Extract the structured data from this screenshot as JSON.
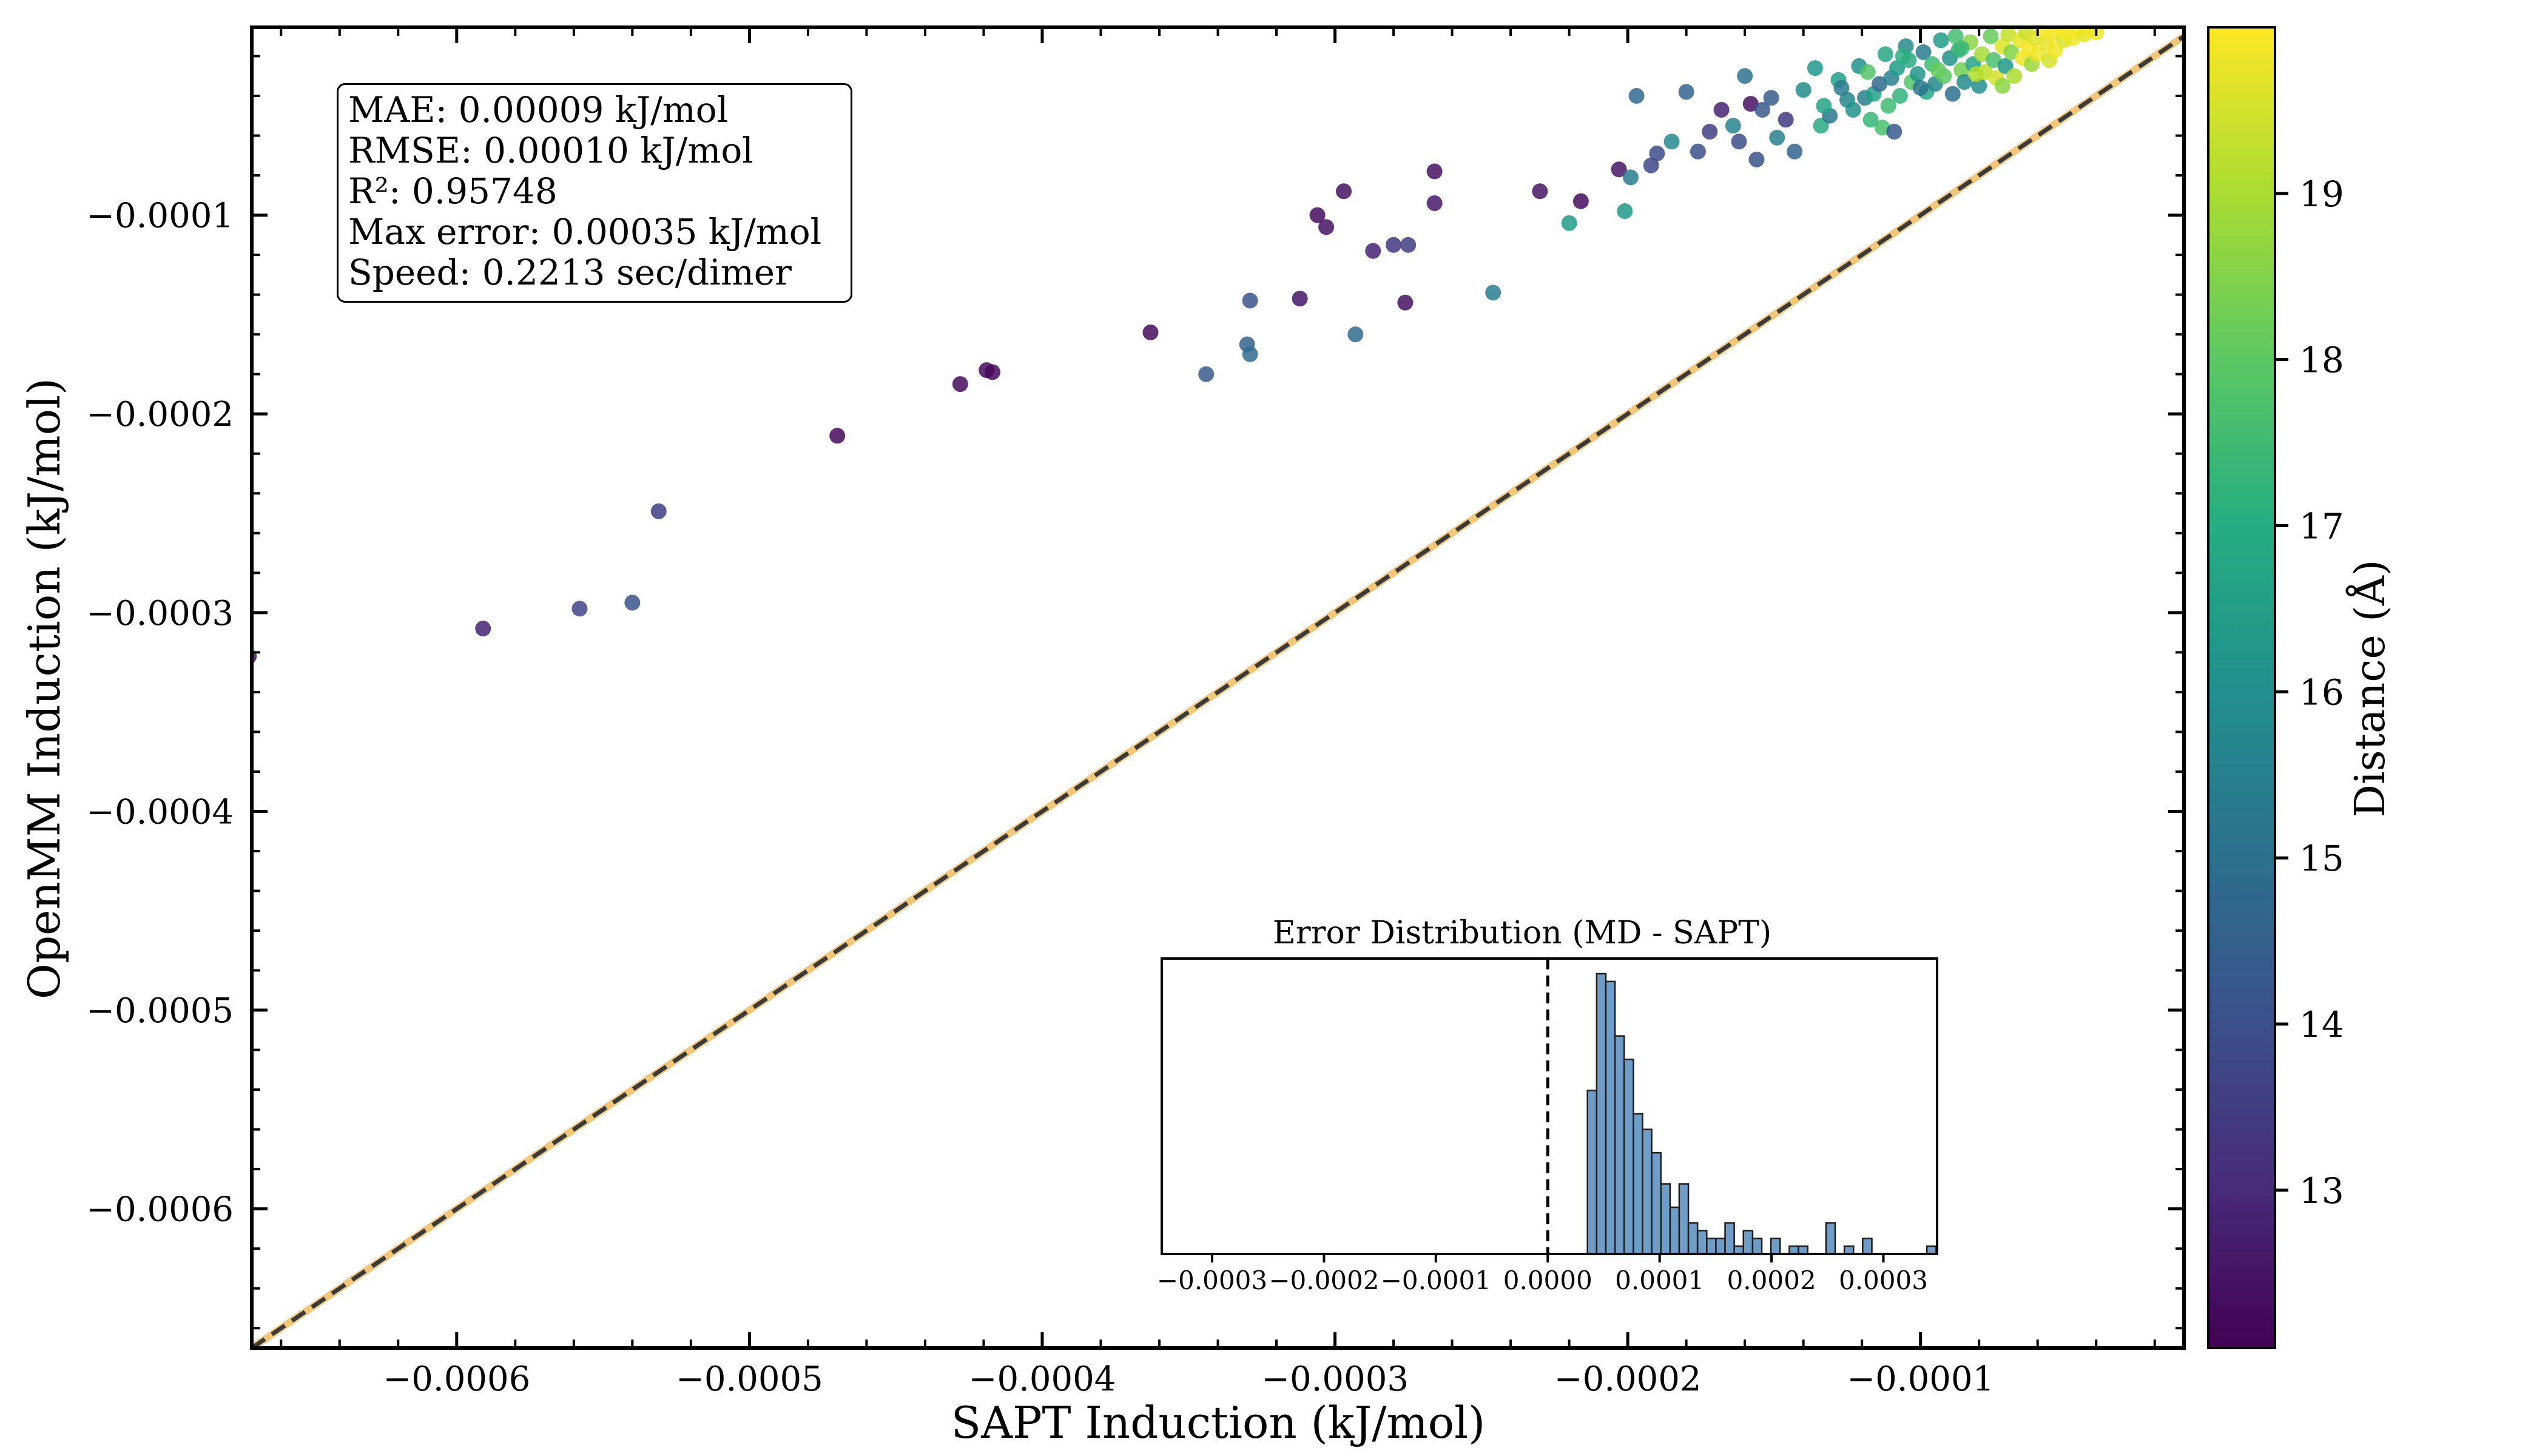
{
  "chart_data": [
    {
      "type": "scatter",
      "xlabel": "SAPT Induction (kJ/mol)",
      "ylabel": "OpenMM Induction (kJ/mol)",
      "xlim": [
        -0.00067,
        -1e-05
      ],
      "ylim": [
        -0.00067,
        -5.5e-06
      ],
      "x_ticks": [
        -0.0006,
        -0.0005,
        -0.0004,
        -0.0003,
        -0.0002,
        -0.0001
      ],
      "x_tick_labels": [
        "−0.0006",
        "−0.0005",
        "−0.0004",
        "−0.0003",
        "−0.0002",
        "−0.0001"
      ],
      "y_ticks": [
        -0.0006,
        -0.0005,
        -0.0004,
        -0.0003,
        -0.0002,
        -0.0001
      ],
      "y_tick_labels": [
        "−0.0006",
        "−0.0005",
        "−0.0004",
        "−0.0003",
        "−0.0002",
        "−0.0001"
      ],
      "reference_line": "y = x (dashed)",
      "colorbar": {
        "label": "Distance (Å)",
        "range": [
          12.05,
          20.0
        ],
        "ticks": [
          13,
          14,
          15,
          16,
          17,
          18,
          19
        ],
        "tick_labels": [
          "13",
          "14",
          "15",
          "16",
          "17",
          "18",
          "19"
        ],
        "colormap": "viridis"
      },
      "points": [
        {
          "x": -0.000671,
          "y": -0.000322,
          "d": 12.5
        },
        {
          "x": -0.000591,
          "y": -0.000308,
          "d": 12.8
        },
        {
          "x": -0.000558,
          "y": -0.000298,
          "d": 13.7
        },
        {
          "x": -0.00054,
          "y": -0.000295,
          "d": 14.1
        },
        {
          "x": -0.000531,
          "y": -0.000249,
          "d": 13.5
        },
        {
          "x": -0.00047,
          "y": -0.000211,
          "d": 12.2
        },
        {
          "x": -0.000428,
          "y": -0.000185,
          "d": 12.3
        },
        {
          "x": -0.000419,
          "y": -0.000178,
          "d": 12.3
        },
        {
          "x": -0.000417,
          "y": -0.000179,
          "d": 12.2
        },
        {
          "x": -0.000363,
          "y": -0.000159,
          "d": 12.3
        },
        {
          "x": -0.000344,
          "y": -0.00018,
          "d": 14.3
        },
        {
          "x": -0.00033,
          "y": -0.000165,
          "d": 14.6
        },
        {
          "x": -0.000329,
          "y": -0.00017,
          "d": 14.8
        },
        {
          "x": -0.000329,
          "y": -0.000143,
          "d": 14.1
        },
        {
          "x": -0.000312,
          "y": -0.000142,
          "d": 12.5
        },
        {
          "x": -0.000306,
          "y": -0.0001,
          "d": 12.3
        },
        {
          "x": -0.000303,
          "y": -0.000106,
          "d": 12.4
        },
        {
          "x": -0.000297,
          "y": -8.8e-05,
          "d": 12.4
        },
        {
          "x": -0.000293,
          "y": -0.00016,
          "d": 14.7
        },
        {
          "x": -0.000287,
          "y": -0.000118,
          "d": 12.8
        },
        {
          "x": -0.00028,
          "y": -0.000115,
          "d": 13.3
        },
        {
          "x": -0.000276,
          "y": -0.000144,
          "d": 12.4
        },
        {
          "x": -0.000275,
          "y": -0.000115,
          "d": 13.5
        },
        {
          "x": -0.000266,
          "y": -9.4e-05,
          "d": 12.6
        },
        {
          "x": -0.000266,
          "y": -7.8e-05,
          "d": 12.4
        },
        {
          "x": -0.000246,
          "y": -0.000139,
          "d": 15.4
        },
        {
          "x": -0.00023,
          "y": -8.8e-05,
          "d": 12.5
        },
        {
          "x": -0.00022,
          "y": -0.000104,
          "d": 16.4
        },
        {
          "x": -0.000216,
          "y": -9.3e-05,
          "d": 12.3
        },
        {
          "x": -0.000203,
          "y": -7.7e-05,
          "d": 12.5
        },
        {
          "x": -0.000201,
          "y": -9.8e-05,
          "d": 16.3
        },
        {
          "x": -0.000199,
          "y": -8.1e-05,
          "d": 15.4
        },
        {
          "x": -0.000197,
          "y": -4e-05,
          "d": 14.7
        },
        {
          "x": -0.000192,
          "y": -7.5e-05,
          "d": 13.8
        },
        {
          "x": -0.00019,
          "y": -6.9e-05,
          "d": 13.9
        },
        {
          "x": -0.000185,
          "y": -6.3e-05,
          "d": 15.8
        },
        {
          "x": -0.00018,
          "y": -3.8e-05,
          "d": 14.5
        },
        {
          "x": -0.000176,
          "y": -6.8e-05,
          "d": 14.0
        },
        {
          "x": -0.000172,
          "y": -5.8e-05,
          "d": 13.5
        },
        {
          "x": -0.000168,
          "y": -4.7e-05,
          "d": 12.8
        },
        {
          "x": -0.000164,
          "y": -5.5e-05,
          "d": 15.6
        },
        {
          "x": -0.000162,
          "y": -6.3e-05,
          "d": 13.9
        },
        {
          "x": -0.00016,
          "y": -3e-05,
          "d": 15.0
        },
        {
          "x": -0.000158,
          "y": -4.4e-05,
          "d": 12.4
        },
        {
          "x": -0.000156,
          "y": -7.2e-05,
          "d": 14.1
        },
        {
          "x": -0.000154,
          "y": -4.7e-05,
          "d": 14.3
        },
        {
          "x": -0.000151,
          "y": -4.1e-05,
          "d": 14.4
        },
        {
          "x": -0.000149,
          "y": -6.1e-05,
          "d": 15.5
        },
        {
          "x": -0.000146,
          "y": -5.2e-05,
          "d": 13.4
        },
        {
          "x": -0.000143,
          "y": -6.8e-05,
          "d": 14.5
        },
        {
          "x": -0.00014,
          "y": -3.7e-05,
          "d": 15.9
        },
        {
          "x": -0.000136,
          "y": -2.6e-05,
          "d": 16.2
        },
        {
          "x": -0.000134,
          "y": -5.5e-05,
          "d": 16.9
        },
        {
          "x": -0.000131,
          "y": -5e-05,
          "d": 15.2
        },
        {
          "x": -0.000128,
          "y": -3.2e-05,
          "d": 16.5
        },
        {
          "x": -0.000125,
          "y": -4.2e-05,
          "d": 15.7
        },
        {
          "x": -0.000123,
          "y": -4.7e-05,
          "d": 16.1
        },
        {
          "x": -0.000121,
          "y": -2.5e-05,
          "d": 16.0
        },
        {
          "x": -0.000119,
          "y": -4.1e-05,
          "d": 15.5
        },
        {
          "x": -0.000117,
          "y": -5.2e-05,
          "d": 17.3
        },
        {
          "x": -0.000116,
          "y": -3.9e-05,
          "d": 16.6
        },
        {
          "x": -0.000114,
          "y": -3.4e-05,
          "d": 14.8
        },
        {
          "x": -0.000113,
          "y": -5.6e-05,
          "d": 17.6
        },
        {
          "x": -0.000112,
          "y": -1.9e-05,
          "d": 16.8
        },
        {
          "x": -0.000111,
          "y": -4.5e-05,
          "d": 17.5
        },
        {
          "x": -0.00011,
          "y": -3.1e-05,
          "d": 15.5
        },
        {
          "x": -0.000109,
          "y": -5.8e-05,
          "d": 14.3
        },
        {
          "x": -0.000108,
          "y": -2.6e-05,
          "d": 16.4
        },
        {
          "x": -0.000107,
          "y": -4e-05,
          "d": 17.2
        },
        {
          "x": -0.000105,
          "y": -1.5e-05,
          "d": 15.8
        },
        {
          "x": -0.000104,
          "y": -2.2e-05,
          "d": 16.9
        },
        {
          "x": -0.000103,
          "y": -3.3e-05,
          "d": 17.8
        },
        {
          "x": -0.000101,
          "y": -2.9e-05,
          "d": 16.2
        },
        {
          "x": -9.9e-05,
          "y": -1.8e-05,
          "d": 15.4
        },
        {
          "x": -9.8e-05,
          "y": -3.8e-05,
          "d": 16.8
        },
        {
          "x": -9.6e-05,
          "y": -2.4e-05,
          "d": 17.5
        },
        {
          "x": -9.5e-05,
          "y": -3.4e-05,
          "d": 15.7
        },
        {
          "x": -9.3e-05,
          "y": -1.2e-05,
          "d": 16.4
        },
        {
          "x": -9.2e-05,
          "y": -3e-05,
          "d": 17.9
        },
        {
          "x": -9e-05,
          "y": -2.1e-05,
          "d": 16.1
        },
        {
          "x": -8.9e-05,
          "y": -3.9e-05,
          "d": 14.9
        },
        {
          "x": -8.7e-05,
          "y": -1.7e-05,
          "d": 17.2
        },
        {
          "x": -8.6e-05,
          "y": -2.7e-05,
          "d": 18.3
        },
        {
          "x": -8.5e-05,
          "y": -3.3e-05,
          "d": 15.9
        },
        {
          "x": -8.3e-05,
          "y": -1.3e-05,
          "d": 18.6
        },
        {
          "x": -8.2e-05,
          "y": -2.4e-05,
          "d": 16.7
        },
        {
          "x": -8e-05,
          "y": -3.5e-05,
          "d": 16.0
        },
        {
          "x": -7.9e-05,
          "y": -1.9e-05,
          "d": 18.9
        },
        {
          "x": -7.8e-05,
          "y": -2.8e-05,
          "d": 19.2
        },
        {
          "x": -7.6e-05,
          "y": -1e-05,
          "d": 18.1
        },
        {
          "x": -7.5e-05,
          "y": -2.2e-05,
          "d": 17.7
        },
        {
          "x": -7.4e-05,
          "y": -3.1e-05,
          "d": 19.5
        },
        {
          "x": -7.2e-05,
          "y": -1.5e-05,
          "d": 19.6
        },
        {
          "x": -7.1e-05,
          "y": -2.5e-05,
          "d": 16.3
        },
        {
          "x": -7e-05,
          "y": -9e-06,
          "d": 19.3
        },
        {
          "x": -6.9e-05,
          "y": -1.8e-05,
          "d": 18.5
        },
        {
          "x": -6.8e-05,
          "y": -3e-05,
          "d": 19.0
        },
        {
          "x": -6.6e-05,
          "y": -1.2e-05,
          "d": 19.7
        },
        {
          "x": -6.5e-05,
          "y": -2.1e-05,
          "d": 19.8
        },
        {
          "x": -6.4e-05,
          "y": -8e-06,
          "d": 19.4
        },
        {
          "x": -6.3e-05,
          "y": -1.6e-05,
          "d": 19.9
        },
        {
          "x": -6.2e-05,
          "y": -2.4e-05,
          "d": 18.8
        },
        {
          "x": -6.1e-05,
          "y": -1.1e-05,
          "d": 19.6
        },
        {
          "x": -6e-05,
          "y": -1.9e-05,
          "d": 19.8
        },
        {
          "x": -5.8e-05,
          "y": -7e-06,
          "d": 19.9
        },
        {
          "x": -5.7e-05,
          "y": -1.4e-05,
          "d": 19.7
        },
        {
          "x": -5.6e-05,
          "y": -2.2e-05,
          "d": 19.5
        },
        {
          "x": -5.5e-05,
          "y": -9e-06,
          "d": 19.9
        },
        {
          "x": -5.4e-05,
          "y": -1.7e-05,
          "d": 19.8
        },
        {
          "x": -5.2e-05,
          "y": -6e-06,
          "d": 19.9
        },
        {
          "x": -5.1e-05,
          "y": -1.2e-05,
          "d": 19.6
        },
        {
          "x": -5e-05,
          "y": -8e-06,
          "d": 19.9
        },
        {
          "x": -4.8e-05,
          "y": -1.1e-05,
          "d": 19.8
        },
        {
          "x": -4.6e-05,
          "y": -7e-06,
          "d": 19.9
        },
        {
          "x": -4.4e-05,
          "y": -9e-06,
          "d": 19.7
        },
        {
          "x": -4.2e-05,
          "y": -6e-06,
          "d": 19.9
        },
        {
          "x": -4e-05,
          "y": -8e-06,
          "d": 19.8
        },
        {
          "x": -8.6e-05,
          "y": -1.6e-05,
          "d": 17.4
        },
        {
          "x": -9.4e-05,
          "y": -2.7e-05,
          "d": 18.1
        },
        {
          "x": -0.0001,
          "y": -3.6e-05,
          "d": 15.1
        },
        {
          "x": -0.000106,
          "y": -2e-05,
          "d": 17.0
        },
        {
          "x": -0.000118,
          "y": -2.8e-05,
          "d": 17.8
        },
        {
          "x": -0.000127,
          "y": -3.6e-05,
          "d": 15.3
        },
        {
          "x": -0.000133,
          "y": -4.5e-05,
          "d": 16.7
        },
        {
          "x": -7.2e-05,
          "y": -3.5e-05,
          "d": 18.6
        },
        {
          "x": -8.1e-05,
          "y": -2.9e-05,
          "d": 19.1
        },
        {
          "x": -8.8e-05,
          "y": -1e-05,
          "d": 17.6
        }
      ],
      "stats_box": [
        "MAE: 0.00009 kJ/mol",
        "RMSE: 0.00010 kJ/mol",
        "R²: 0.95748",
        "Max error: 0.00035 kJ/mol",
        "Speed: 0.2213 sec/dimer"
      ]
    },
    {
      "type": "bar",
      "title": "Error Distribution (MD - SAPT)",
      "xlim": [
        -0.000345,
        0.000348
      ],
      "x_ticks": [
        -0.0003,
        -0.0002,
        -0.0001,
        0.0,
        0.0001,
        0.0002,
        0.0003
      ],
      "x_tick_labels": [
        "−0.0003",
        "−0.0002",
        "−0.0001",
        "0.0000",
        "0.0001",
        "0.0002",
        "0.0003"
      ],
      "reference_line_x": 0.0,
      "bin_width": 8.2e-06,
      "bin_starts": [
        3.55e-05,
        4.37e-05,
        5.19e-05,
        6.01e-05,
        6.83e-05,
        7.65e-05,
        8.47e-05,
        9.29e-05,
        0.0001011,
        0.0001093,
        0.0001175,
        0.0001257,
        0.0001339,
        0.0001421,
        0.0001503,
        0.0001585,
        0.0001667,
        0.0001749,
        0.0001831,
        0.0001913,
        0.0001995,
        0.0002077,
        0.0002159,
        0.0002241,
        0.0002323,
        0.0002405,
        0.0002487,
        0.0002569,
        0.0002651,
        0.0002733,
        0.0002815,
        0.0002897,
        0.0002979,
        0.0003061,
        0.0003143,
        0.0003225,
        0.0003307,
        0.0003389
      ],
      "counts": [
        21,
        36,
        35,
        28,
        25,
        18,
        16,
        13,
        9,
        6,
        9,
        4,
        3,
        2,
        2,
        4,
        1,
        3,
        2,
        0,
        2,
        0,
        1,
        1,
        0,
        0,
        4,
        0,
        1,
        0,
        2,
        0,
        0,
        0,
        0,
        0,
        0,
        1
      ]
    }
  ]
}
